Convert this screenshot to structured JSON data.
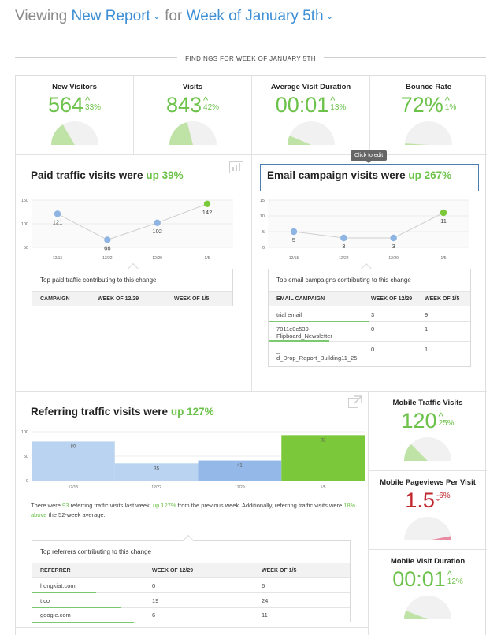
{
  "header": {
    "prefix": "Viewing",
    "report": "New Report",
    "middle": "for",
    "week": "Week of January 5th"
  },
  "findings_title": "FINDINGS FOR WEEK OF JANUARY 5TH",
  "metrics": {
    "new_visitors": {
      "label": "New Visitors",
      "value": "564",
      "change": "33%",
      "direction": "up",
      "fraction": 0.33
    },
    "visits": {
      "label": "Visits",
      "value": "843",
      "change": "42%",
      "direction": "up",
      "fraction": 0.42
    },
    "avg_visit": {
      "label": "Average Visit Duration",
      "value": "00:01",
      "change": "13%",
      "direction": "up",
      "fraction": 0.13
    },
    "bounce": {
      "label": "Bounce Rate",
      "value": "72%",
      "change": "1%",
      "direction": "up",
      "fraction": 0.02
    },
    "mobile_visits": {
      "label": "Mobile Traffic Visits",
      "value": "120",
      "change": "25%",
      "direction": "up",
      "fraction": 0.25
    },
    "mobile_pageviews": {
      "label": "Mobile Pageviews Per Visit",
      "value": "1.5",
      "change": "-6%",
      "direction": "down",
      "fraction": 0.06
    },
    "mobile_duration": {
      "label": "Mobile Visit Duration",
      "value": "00:01",
      "change": "12%",
      "direction": "up",
      "fraction": 0.12
    }
  },
  "paid": {
    "title": "Paid traffic visits were",
    "up_text": "up 39%",
    "table_title": "Top paid traffic contributing to this change",
    "headers": [
      "CAMPAIGN",
      "WEEK OF 12/29",
      "WEEK OF 1/5"
    ]
  },
  "email": {
    "title": "Email campaign visits were",
    "up_text": "up 267%",
    "tooltip": "Click to edit",
    "table_title": "Top email campaigns contributing to this change",
    "headers": [
      "EMAIL CAMPAIGN",
      "WEEK OF 12/29",
      "WEEK OF 1/5"
    ],
    "rows": [
      {
        "name": "trial email",
        "prev": "3",
        "curr": "9",
        "fraction": 0.5
      },
      {
        "name": "7811e0c539-\nFlipboard_Newsletter",
        "prev": "0",
        "curr": "1",
        "fraction": 0.3
      },
      {
        "name": "_\nd_Drop_Report_Building11_25",
        "prev": "0",
        "curr": "1",
        "fraction": 0.3
      }
    ]
  },
  "referring": {
    "title": "Referring traffic visits were",
    "up_text": "up 127%",
    "desc_a": "There were",
    "desc_b": "93",
    "desc_c": "referring traffic visits last week,",
    "desc_d": "up 127%",
    "desc_e": "from the previous week. Additionally, referring traffic visits were",
    "desc_f": "18% above",
    "desc_g": "the 52-week average.",
    "table_title": "Top referrers contributing to this change",
    "headers": [
      "REFERRER",
      "WEEK OF 12/29",
      "WEEK OF 1/5"
    ],
    "rows": [
      {
        "name": "hongkiat.com",
        "prev": "0",
        "curr": "6",
        "fraction": 0.2
      },
      {
        "name": "t.co",
        "prev": "19",
        "curr": "24",
        "fraction": 0.28
      },
      {
        "name": "google.com",
        "prev": "6",
        "curr": "11",
        "fraction": 0.32
      }
    ]
  },
  "chart_data": [
    {
      "type": "line",
      "categories": [
        "12/15",
        "12/22",
        "12/29",
        "1/5"
      ],
      "values": [
        121,
        66,
        102,
        142
      ],
      "ylim": [
        50,
        150
      ],
      "yticks": [
        50,
        100,
        150
      ],
      "grid": true
    },
    {
      "type": "line",
      "categories": [
        "12/15",
        "12/22",
        "12/29",
        "1/5"
      ],
      "values": [
        5,
        3,
        3,
        11
      ],
      "ylim": [
        0,
        15
      ],
      "yticks": [
        0,
        5,
        10,
        15
      ],
      "grid": true
    },
    {
      "type": "bar",
      "categories": [
        "12/15",
        "12/22",
        "12/29",
        "1/5"
      ],
      "values": [
        80,
        35,
        41,
        93
      ],
      "ylim": [
        0,
        100
      ],
      "yticks": [
        0,
        50,
        100
      ],
      "grid": true
    }
  ],
  "colors": {
    "green": "#6cc24a",
    "blue": "#3d8fd6",
    "red": "#c0272d",
    "point_blue": "#8db4e2",
    "bar_light": "#b9d3f0",
    "bar_mid": "#94b8e8",
    "bar_green": "#7bc93a"
  }
}
